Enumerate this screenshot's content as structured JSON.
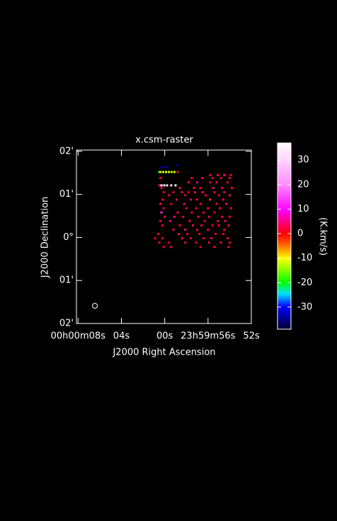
{
  "chart_data": {
    "type": "raster",
    "title": "x.csm-raster",
    "xlabel": "J2000 Right Ascension",
    "ylabel": "J2000 Declination",
    "xlim": [
      8.15,
      -8
    ],
    "ylim": [
      -2,
      2.03
    ],
    "xticks": [
      {
        "value": 8,
        "label": "00h00m08s"
      },
      {
        "value": 4,
        "label": "04s"
      },
      {
        "value": 0,
        "label": "00s"
      },
      {
        "value": -4,
        "label": "23h59m56s"
      },
      {
        "value": -8,
        "label": "52s"
      }
    ],
    "yticks": [
      {
        "value": 2,
        "label": "02'"
      },
      {
        "value": 1,
        "label": "01'"
      },
      {
        "value": 0,
        "label": "0°"
      },
      {
        "value": -1,
        "label": "01'"
      },
      {
        "value": -2,
        "label": "02'"
      }
    ],
    "colorbar": {
      "label": "(K.km/s)",
      "lim": [
        -39,
        37
      ],
      "ticks": [
        30,
        20,
        10,
        0,
        -10,
        -20,
        -30
      ],
      "colormap": [
        {
          "at": 0,
          "color": "#000030"
        },
        {
          "at": 0.12,
          "color": "#0000ff"
        },
        {
          "at": 0.19,
          "color": "#00e0ff"
        },
        {
          "at": 0.25,
          "color": "#00ff00"
        },
        {
          "at": 0.38,
          "color": "#ffff00"
        },
        {
          "at": 0.44,
          "color": "#ff8000"
        },
        {
          "at": 0.51,
          "color": "#ff0000"
        },
        {
          "at": 0.64,
          "color": "#ff00ff"
        },
        {
          "at": 0.78,
          "color": "#ff90ff"
        },
        {
          "at": 1,
          "color": "#ffffff"
        }
      ]
    },
    "pixels": [
      {
        "x": 0.3,
        "y": 1.63,
        "value": -32
      },
      {
        "x": -0.1,
        "y": 1.63,
        "value": -30
      },
      {
        "x": -1.1,
        "y": 1.68,
        "value": -34
      },
      {
        "x": 0.5,
        "y": 1.52,
        "value": -20
      },
      {
        "x": 0.4,
        "y": 1.52,
        "value": -12
      },
      {
        "x": 0.14,
        "y": 1.52,
        "value": -12
      },
      {
        "x": -0.12,
        "y": 1.52,
        "value": -11
      },
      {
        "x": -0.38,
        "y": 1.52,
        "value": -12
      },
      {
        "x": -0.64,
        "y": 1.52,
        "value": -13
      },
      {
        "x": -0.9,
        "y": 1.52,
        "value": -12
      },
      {
        "x": -1.2,
        "y": 1.52,
        "value": 0
      },
      {
        "x": -4.2,
        "y": 1.45,
        "value": 3
      },
      {
        "x": -4.9,
        "y": 1.45,
        "value": 2
      },
      {
        "x": -5.5,
        "y": 1.45,
        "value": 4
      },
      {
        "x": -6.1,
        "y": 1.45,
        "value": 1
      },
      {
        "x": 0.4,
        "y": 1.38,
        "value": 2
      },
      {
        "x": -2.5,
        "y": 1.38,
        "value": 1
      },
      {
        "x": -3.5,
        "y": 1.38,
        "value": 3
      },
      {
        "x": -4.4,
        "y": 1.38,
        "value": 0
      },
      {
        "x": -5.2,
        "y": 1.38,
        "value": 2
      },
      {
        "x": -6.0,
        "y": 1.38,
        "value": 1
      },
      {
        "x": -2.2,
        "y": 1.28,
        "value": 2
      },
      {
        "x": -3.0,
        "y": 1.28,
        "value": 4
      },
      {
        "x": -4.2,
        "y": 1.28,
        "value": 1
      },
      {
        "x": -4.8,
        "y": 1.28,
        "value": 3
      },
      {
        "x": -5.8,
        "y": 1.28,
        "value": 0
      },
      {
        "x": 0.5,
        "y": 1.21,
        "value": 2
      },
      {
        "x": 0.3,
        "y": 1.21,
        "value": 35
      },
      {
        "x": 0.04,
        "y": 1.21,
        "value": 35
      },
      {
        "x": -0.22,
        "y": 1.21,
        "value": 34
      },
      {
        "x": -0.6,
        "y": 1.21,
        "value": 33
      },
      {
        "x": -1.0,
        "y": 1.21,
        "value": 36
      },
      {
        "x": 0.3,
        "y": 1.15,
        "value": 1
      },
      {
        "x": -1.4,
        "y": 1.15,
        "value": 3
      },
      {
        "x": -2.7,
        "y": 1.15,
        "value": 2
      },
      {
        "x": -3.3,
        "y": 1.15,
        "value": 0
      },
      {
        "x": -4.5,
        "y": 1.15,
        "value": 4
      },
      {
        "x": -5.3,
        "y": 1.15,
        "value": 2
      },
      {
        "x": -6.2,
        "y": 1.15,
        "value": 1
      },
      {
        "x": 0.1,
        "y": 1.05,
        "value": 2
      },
      {
        "x": -0.8,
        "y": 1.05,
        "value": 1
      },
      {
        "x": -1.6,
        "y": 1.05,
        "value": 3
      },
      {
        "x": -2.2,
        "y": 1.05,
        "value": 0
      },
      {
        "x": -2.8,
        "y": 1.05,
        "value": 2
      },
      {
        "x": -3.5,
        "y": 1.05,
        "value": 4
      },
      {
        "x": -4.6,
        "y": 1.05,
        "value": 1
      },
      {
        "x": -5.5,
        "y": 1.05,
        "value": 2
      },
      {
        "x": -0.4,
        "y": 0.98,
        "value": 3
      },
      {
        "x": -1.9,
        "y": 0.98,
        "value": 1
      },
      {
        "x": -3.8,
        "y": 0.98,
        "value": 2
      },
      {
        "x": -5.0,
        "y": 0.98,
        "value": 0
      },
      {
        "x": -6.0,
        "y": 0.98,
        "value": 3
      },
      {
        "x": 0.2,
        "y": 0.88,
        "value": 1
      },
      {
        "x": -1.1,
        "y": 0.88,
        "value": 2
      },
      {
        "x": -2.4,
        "y": 0.88,
        "value": 4
      },
      {
        "x": -3.0,
        "y": 0.88,
        "value": 1
      },
      {
        "x": -4.2,
        "y": 0.88,
        "value": -3
      },
      {
        "x": -5.4,
        "y": 0.88,
        "value": 2
      },
      {
        "x": 0.4,
        "y": 0.78,
        "value": 2
      },
      {
        "x": -0.6,
        "y": 0.78,
        "value": 0
      },
      {
        "x": -1.8,
        "y": 0.78,
        "value": 3
      },
      {
        "x": -3.3,
        "y": 0.78,
        "value": 1
      },
      {
        "x": -4.8,
        "y": 0.78,
        "value": 2
      },
      {
        "x": -5.7,
        "y": 0.78,
        "value": 4
      },
      {
        "x": 0.1,
        "y": 0.68,
        "value": 1
      },
      {
        "x": -2.0,
        "y": 0.68,
        "value": 2
      },
      {
        "x": -2.9,
        "y": 0.68,
        "value": 0
      },
      {
        "x": -4.0,
        "y": 0.68,
        "value": 3
      },
      {
        "x": -5.1,
        "y": 0.68,
        "value": 1
      },
      {
        "x": -6.1,
        "y": 0.68,
        "value": 2
      },
      {
        "x": 0.3,
        "y": 0.58,
        "value": 12
      },
      {
        "x": -1.2,
        "y": 0.58,
        "value": 2
      },
      {
        "x": -2.5,
        "y": 0.58,
        "value": 1
      },
      {
        "x": -3.6,
        "y": 0.58,
        "value": 3
      },
      {
        "x": -4.6,
        "y": 0.58,
        "value": 0
      },
      {
        "x": 0.0,
        "y": 0.48,
        "value": 2
      },
      {
        "x": -0.9,
        "y": 0.48,
        "value": 4
      },
      {
        "x": -1.7,
        "y": 0.48,
        "value": 1
      },
      {
        "x": -3.1,
        "y": 0.48,
        "value": 2
      },
      {
        "x": -4.1,
        "y": 0.48,
        "value": 3
      },
      {
        "x": -5.3,
        "y": 0.48,
        "value": 1
      },
      {
        "x": -6.0,
        "y": 0.48,
        "value": 0
      },
      {
        "x": 0.4,
        "y": 0.38,
        "value": 1
      },
      {
        "x": -0.5,
        "y": 0.38,
        "value": 3
      },
      {
        "x": -2.3,
        "y": 0.38,
        "value": 2
      },
      {
        "x": -3.7,
        "y": 0.38,
        "value": 0
      },
      {
        "x": -4.9,
        "y": 0.38,
        "value": 2
      },
      {
        "x": -5.6,
        "y": 0.38,
        "value": 4
      },
      {
        "x": 0.2,
        "y": 0.28,
        "value": 2
      },
      {
        "x": -1.4,
        "y": 0.28,
        "value": 1
      },
      {
        "x": -2.6,
        "y": 0.28,
        "value": 3
      },
      {
        "x": -3.4,
        "y": 0.28,
        "value": 2
      },
      {
        "x": -4.4,
        "y": 0.28,
        "value": 0
      },
      {
        "x": -5.0,
        "y": 0.28,
        "value": 1
      },
      {
        "x": -5.9,
        "y": 0.28,
        "value": 3
      },
      {
        "x": -0.8,
        "y": 0.18,
        "value": 2
      },
      {
        "x": -1.9,
        "y": 0.18,
        "value": 4
      },
      {
        "x": -3.0,
        "y": 0.18,
        "value": 1
      },
      {
        "x": -4.0,
        "y": 0.18,
        "value": 2
      },
      {
        "x": -5.5,
        "y": 0.18,
        "value": 0
      },
      {
        "x": 0.6,
        "y": 0.08,
        "value": 1
      },
      {
        "x": -1.3,
        "y": 0.08,
        "value": 3
      },
      {
        "x": -2.1,
        "y": 0.08,
        "value": 2
      },
      {
        "x": -3.2,
        "y": 0.08,
        "value": 0
      },
      {
        "x": -4.7,
        "y": 0.08,
        "value": 2
      },
      {
        "x": -5.4,
        "y": 0.08,
        "value": 1
      },
      {
        "x": 0.9,
        "y": -0.02,
        "value": 2
      },
      {
        "x": 0.2,
        "y": -0.02,
        "value": 1
      },
      {
        "x": -1.6,
        "y": -0.02,
        "value": 3
      },
      {
        "x": -2.4,
        "y": -0.02,
        "value": 2
      },
      {
        "x": -3.6,
        "y": -0.02,
        "value": 0
      },
      {
        "x": -4.3,
        "y": -0.02,
        "value": 4
      },
      {
        "x": -5.8,
        "y": -0.02,
        "value": 1
      },
      {
        "x": 0.5,
        "y": -0.12,
        "value": 2
      },
      {
        "x": -0.4,
        "y": -0.12,
        "value": 0
      },
      {
        "x": -1.9,
        "y": -0.12,
        "value": 3
      },
      {
        "x": -2.9,
        "y": -0.12,
        "value": 1
      },
      {
        "x": -4.1,
        "y": -0.12,
        "value": 2
      },
      {
        "x": -5.2,
        "y": -0.12,
        "value": 3
      },
      {
        "x": -6.0,
        "y": -0.12,
        "value": 1
      },
      {
        "x": 0.1,
        "y": -0.22,
        "value": 1
      },
      {
        "x": -0.6,
        "y": -0.22,
        "value": 2
      },
      {
        "x": -3.3,
        "y": -0.22,
        "value": 0
      },
      {
        "x": -4.6,
        "y": -0.22,
        "value": 2
      },
      {
        "x": -5.9,
        "y": -0.22,
        "value": 1
      }
    ]
  }
}
